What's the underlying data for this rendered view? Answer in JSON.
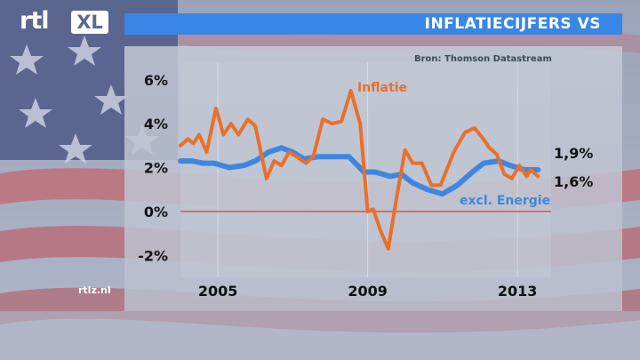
{
  "header": {
    "title": "INFLATIECIJFERS VS"
  },
  "logo": {
    "rtl": "rtl",
    "xl": "XL"
  },
  "source": "Bron: Thomson Datastream",
  "site": "rtlz.nl",
  "colors": {
    "inflation": "#e8702a",
    "core": "#3f86e0",
    "zero_line": "#d9534f",
    "title_bar": "#3a86e6"
  },
  "chart_data": {
    "type": "line",
    "xlim": [
      2004.0,
      2013.9
    ],
    "ylim": [
      -3.0,
      6.8
    ],
    "y_ticks": [
      6,
      4,
      2,
      0,
      -2
    ],
    "y_tick_labels": [
      "6%",
      "4%",
      "2%",
      "0%",
      "-2%"
    ],
    "x_tick_labels": [
      {
        "x": 2005,
        "label": "2005"
      },
      {
        "x": 2009,
        "label": "2009"
      },
      {
        "x": 2013,
        "label": "2013"
      }
    ],
    "reference_line": {
      "y": 0
    },
    "series": [
      {
        "name": "Inflatie",
        "color": "#e8702a",
        "end_label": "1,6%",
        "points": [
          [
            2004.0,
            3.0
          ],
          [
            2004.2,
            3.3
          ],
          [
            2004.35,
            3.1
          ],
          [
            2004.5,
            3.5
          ],
          [
            2004.7,
            2.7
          ],
          [
            2004.95,
            4.7
          ],
          [
            2005.15,
            3.5
          ],
          [
            2005.35,
            4.0
          ],
          [
            2005.55,
            3.5
          ],
          [
            2005.8,
            4.2
          ],
          [
            2006.0,
            3.9
          ],
          [
            2006.3,
            1.5
          ],
          [
            2006.5,
            2.3
          ],
          [
            2006.7,
            2.1
          ],
          [
            2006.9,
            2.7
          ],
          [
            2007.1,
            2.5
          ],
          [
            2007.35,
            2.2
          ],
          [
            2007.55,
            2.5
          ],
          [
            2007.8,
            4.2
          ],
          [
            2008.05,
            4.0
          ],
          [
            2008.3,
            4.1
          ],
          [
            2008.55,
            5.5
          ],
          [
            2008.8,
            4.0
          ],
          [
            2009.0,
            0.0
          ],
          [
            2009.15,
            0.1
          ],
          [
            2009.35,
            -0.9
          ],
          [
            2009.55,
            -1.7
          ],
          [
            2009.75,
            0.4
          ],
          [
            2010.0,
            2.8
          ],
          [
            2010.2,
            2.2
          ],
          [
            2010.45,
            2.2
          ],
          [
            2010.7,
            1.2
          ],
          [
            2010.95,
            1.2
          ],
          [
            2011.3,
            2.7
          ],
          [
            2011.6,
            3.6
          ],
          [
            2011.85,
            3.8
          ],
          [
            2012.05,
            3.4
          ],
          [
            2012.25,
            2.9
          ],
          [
            2012.45,
            2.6
          ],
          [
            2012.65,
            1.7
          ],
          [
            2012.85,
            1.5
          ],
          [
            2013.05,
            2.1
          ],
          [
            2013.25,
            1.6
          ],
          [
            2013.35,
            1.9
          ],
          [
            2013.55,
            1.6
          ]
        ]
      },
      {
        "name": "excl. Energie",
        "color": "#3f86e0",
        "end_label": "1,9%",
        "points": [
          [
            2004.0,
            2.3
          ],
          [
            2004.3,
            2.3
          ],
          [
            2004.6,
            2.2
          ],
          [
            2004.9,
            2.2
          ],
          [
            2005.3,
            2.0
          ],
          [
            2005.7,
            2.1
          ],
          [
            2006.0,
            2.3
          ],
          [
            2006.35,
            2.7
          ],
          [
            2006.7,
            2.9
          ],
          [
            2007.0,
            2.7
          ],
          [
            2007.3,
            2.4
          ],
          [
            2007.7,
            2.5
          ],
          [
            2008.1,
            2.5
          ],
          [
            2008.5,
            2.5
          ],
          [
            2008.9,
            1.8
          ],
          [
            2009.2,
            1.8
          ],
          [
            2009.6,
            1.6
          ],
          [
            2009.9,
            1.7
          ],
          [
            2010.2,
            1.3
          ],
          [
            2010.6,
            1.0
          ],
          [
            2011.0,
            0.8
          ],
          [
            2011.4,
            1.2
          ],
          [
            2011.8,
            1.8
          ],
          [
            2012.1,
            2.2
          ],
          [
            2012.5,
            2.3
          ],
          [
            2012.8,
            2.1
          ],
          [
            2013.2,
            1.9
          ],
          [
            2013.55,
            1.9
          ]
        ]
      }
    ]
  }
}
